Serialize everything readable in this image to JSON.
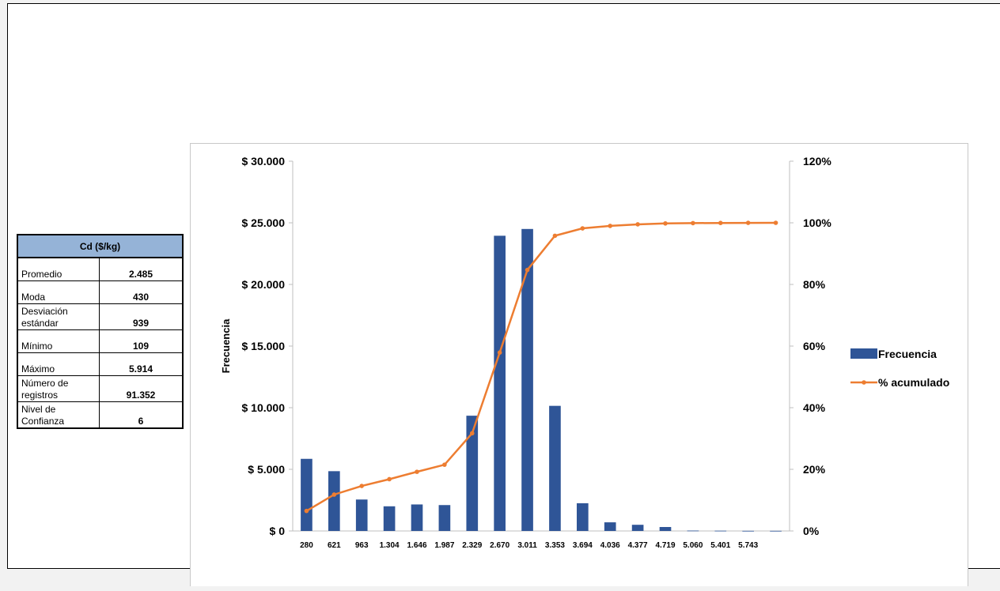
{
  "stats_table": {
    "header": "Cd ($/kg)",
    "rows": [
      {
        "label": "Promedio",
        "value": "2.485"
      },
      {
        "label": "Moda",
        "value": "430"
      },
      {
        "label": "Desviación estándar",
        "value": "939"
      },
      {
        "label": "Mínimo",
        "value": "109"
      },
      {
        "label": "Máximo",
        "value": "5.914"
      },
      {
        "label": "Número de registros",
        "value": "91.352"
      },
      {
        "label": "Nivel de Confianza",
        "value": "6"
      }
    ]
  },
  "chart_data": {
    "type": "bar",
    "categories": [
      "280",
      "621",
      "963",
      "1.304",
      "1.646",
      "1.987",
      "2.329",
      "2.670",
      "3.011",
      "3.353",
      "3.694",
      "4.036",
      "4.377",
      "4.719",
      "5.060",
      "5.401",
      "5.743",
      ""
    ],
    "ylabel": "Frecuencia",
    "ylim": [
      0,
      30000
    ],
    "y2lim": [
      0,
      1.2
    ],
    "y_ticks": [
      "$ 0",
      "$ 5.000",
      "$ 10.000",
      "$ 15.000",
      "$ 20.000",
      "$ 25.000",
      "$ 30.000"
    ],
    "y2_ticks": [
      "0%",
      "20%",
      "40%",
      "60%",
      "80%",
      "100%",
      "120%"
    ],
    "legend_position": "right",
    "series": [
      {
        "name": "Frecuencia",
        "type": "bar",
        "color": "#2f5597",
        "values": [
          5850,
          4850,
          2550,
          2000,
          2150,
          2100,
          9350,
          23950,
          24500,
          10150,
          2250,
          700,
          500,
          320,
          30,
          20,
          10,
          10
        ]
      },
      {
        "name": "% acumulado",
        "type": "line",
        "color": "#ed7d31",
        "values": [
          0.065,
          0.118,
          0.146,
          0.168,
          0.192,
          0.215,
          0.317,
          0.579,
          0.847,
          0.958,
          0.982,
          0.99,
          0.995,
          0.998,
          0.999,
          0.9995,
          0.9998,
          1.0
        ]
      }
    ]
  }
}
